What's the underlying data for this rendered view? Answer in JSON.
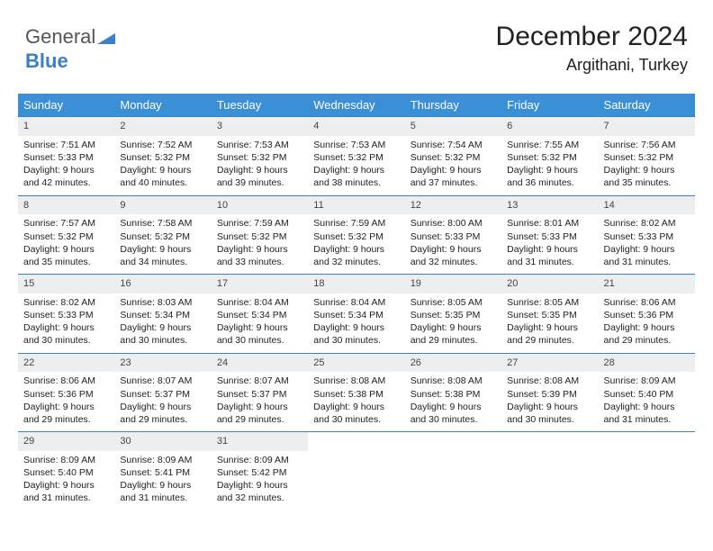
{
  "logo": {
    "part1": "General",
    "part2": "Blue"
  },
  "header": {
    "title": "December 2024",
    "location": "Argithani, Turkey"
  },
  "colors": {
    "header_bg": "#3b8fd4",
    "border": "#3b7fc4",
    "daynum_bg": "#eceeef"
  },
  "dayNames": [
    "Sunday",
    "Monday",
    "Tuesday",
    "Wednesday",
    "Thursday",
    "Friday",
    "Saturday"
  ],
  "weeks": [
    [
      {
        "num": "1",
        "sunrise": "7:51 AM",
        "sunset": "5:33 PM",
        "daylight": "9 hours and 42 minutes."
      },
      {
        "num": "2",
        "sunrise": "7:52 AM",
        "sunset": "5:32 PM",
        "daylight": "9 hours and 40 minutes."
      },
      {
        "num": "3",
        "sunrise": "7:53 AM",
        "sunset": "5:32 PM",
        "daylight": "9 hours and 39 minutes."
      },
      {
        "num": "4",
        "sunrise": "7:53 AM",
        "sunset": "5:32 PM",
        "daylight": "9 hours and 38 minutes."
      },
      {
        "num": "5",
        "sunrise": "7:54 AM",
        "sunset": "5:32 PM",
        "daylight": "9 hours and 37 minutes."
      },
      {
        "num": "6",
        "sunrise": "7:55 AM",
        "sunset": "5:32 PM",
        "daylight": "9 hours and 36 minutes."
      },
      {
        "num": "7",
        "sunrise": "7:56 AM",
        "sunset": "5:32 PM",
        "daylight": "9 hours and 35 minutes."
      }
    ],
    [
      {
        "num": "8",
        "sunrise": "7:57 AM",
        "sunset": "5:32 PM",
        "daylight": "9 hours and 35 minutes."
      },
      {
        "num": "9",
        "sunrise": "7:58 AM",
        "sunset": "5:32 PM",
        "daylight": "9 hours and 34 minutes."
      },
      {
        "num": "10",
        "sunrise": "7:59 AM",
        "sunset": "5:32 PM",
        "daylight": "9 hours and 33 minutes."
      },
      {
        "num": "11",
        "sunrise": "7:59 AM",
        "sunset": "5:32 PM",
        "daylight": "9 hours and 32 minutes."
      },
      {
        "num": "12",
        "sunrise": "8:00 AM",
        "sunset": "5:33 PM",
        "daylight": "9 hours and 32 minutes."
      },
      {
        "num": "13",
        "sunrise": "8:01 AM",
        "sunset": "5:33 PM",
        "daylight": "9 hours and 31 minutes."
      },
      {
        "num": "14",
        "sunrise": "8:02 AM",
        "sunset": "5:33 PM",
        "daylight": "9 hours and 31 minutes."
      }
    ],
    [
      {
        "num": "15",
        "sunrise": "8:02 AM",
        "sunset": "5:33 PM",
        "daylight": "9 hours and 30 minutes."
      },
      {
        "num": "16",
        "sunrise": "8:03 AM",
        "sunset": "5:34 PM",
        "daylight": "9 hours and 30 minutes."
      },
      {
        "num": "17",
        "sunrise": "8:04 AM",
        "sunset": "5:34 PM",
        "daylight": "9 hours and 30 minutes."
      },
      {
        "num": "18",
        "sunrise": "8:04 AM",
        "sunset": "5:34 PM",
        "daylight": "9 hours and 30 minutes."
      },
      {
        "num": "19",
        "sunrise": "8:05 AM",
        "sunset": "5:35 PM",
        "daylight": "9 hours and 29 minutes."
      },
      {
        "num": "20",
        "sunrise": "8:05 AM",
        "sunset": "5:35 PM",
        "daylight": "9 hours and 29 minutes."
      },
      {
        "num": "21",
        "sunrise": "8:06 AM",
        "sunset": "5:36 PM",
        "daylight": "9 hours and 29 minutes."
      }
    ],
    [
      {
        "num": "22",
        "sunrise": "8:06 AM",
        "sunset": "5:36 PM",
        "daylight": "9 hours and 29 minutes."
      },
      {
        "num": "23",
        "sunrise": "8:07 AM",
        "sunset": "5:37 PM",
        "daylight": "9 hours and 29 minutes."
      },
      {
        "num": "24",
        "sunrise": "8:07 AM",
        "sunset": "5:37 PM",
        "daylight": "9 hours and 29 minutes."
      },
      {
        "num": "25",
        "sunrise": "8:08 AM",
        "sunset": "5:38 PM",
        "daylight": "9 hours and 30 minutes."
      },
      {
        "num": "26",
        "sunrise": "8:08 AM",
        "sunset": "5:38 PM",
        "daylight": "9 hours and 30 minutes."
      },
      {
        "num": "27",
        "sunrise": "8:08 AM",
        "sunset": "5:39 PM",
        "daylight": "9 hours and 30 minutes."
      },
      {
        "num": "28",
        "sunrise": "8:09 AM",
        "sunset": "5:40 PM",
        "daylight": "9 hours and 31 minutes."
      }
    ],
    [
      {
        "num": "29",
        "sunrise": "8:09 AM",
        "sunset": "5:40 PM",
        "daylight": "9 hours and 31 minutes."
      },
      {
        "num": "30",
        "sunrise": "8:09 AM",
        "sunset": "5:41 PM",
        "daylight": "9 hours and 31 minutes."
      },
      {
        "num": "31",
        "sunrise": "8:09 AM",
        "sunset": "5:42 PM",
        "daylight": "9 hours and 32 minutes."
      },
      null,
      null,
      null,
      null
    ]
  ],
  "labels": {
    "sunrise": "Sunrise:",
    "sunset": "Sunset:",
    "daylight": "Daylight:"
  }
}
